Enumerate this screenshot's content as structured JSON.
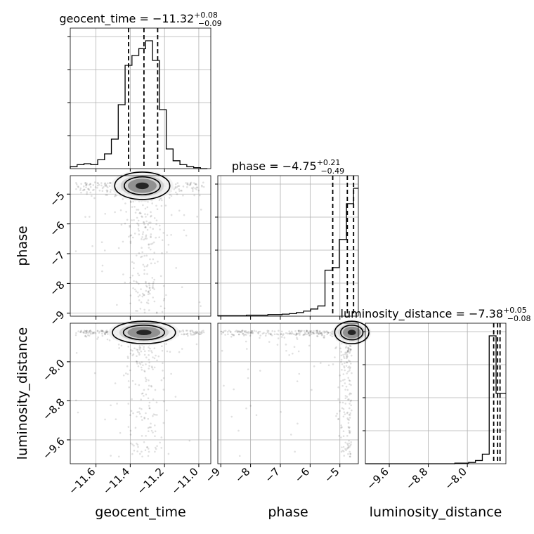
{
  "chart_data": {
    "type": "corner",
    "parameters": [
      "geocent_time",
      "phase",
      "luminosity_distance"
    ],
    "axis_labels": {
      "geocent_time": "geocent_time",
      "phase": "phase",
      "luminosity_distance": "luminosity_distance"
    },
    "titles": [
      {
        "param": "geocent_time",
        "name": "geocent_time",
        "median": "−11.32",
        "plus": "+0.08",
        "minus": "−0.09"
      },
      {
        "param": "phase",
        "name": "phase",
        "median": "−4.75",
        "plus": "+0.21",
        "minus": "−0.49"
      },
      {
        "param": "luminosity_distance",
        "name": "luminosity_distance",
        "median": "−7.38",
        "plus": "+0.05",
        "minus": "−0.08"
      }
    ],
    "ranges": {
      "geocent_time": [
        -11.75,
        -10.93
      ],
      "phase": [
        -9.1,
        -4.38
      ],
      "luminosity_distance": [
        -10.09,
        -7.21
      ]
    },
    "ticks": {
      "geocent_time": [
        -11.6,
        -11.4,
        -11.2,
        -11.0
      ],
      "phase": [
        -9,
        -8,
        -7,
        -6,
        -5
      ],
      "luminosity_distance": [
        -9.6,
        -8.8,
        -8.0
      ]
    },
    "tick_labels": {
      "geocent_time": [
        "−11.6",
        "−11.4",
        "−11.2",
        "−11.0"
      ],
      "phase": [
        "−9",
        "−8",
        "−7",
        "−6",
        "−5"
      ],
      "luminosity_distance": [
        "−9.6",
        "−8.8",
        "−8.0"
      ]
    },
    "quantiles": {
      "geocent_time": [
        -11.41,
        -11.32,
        -11.24
      ],
      "phase": [
        -5.24,
        -4.75,
        -4.54
      ],
      "luminosity_distance": [
        -7.46,
        -7.38,
        -7.33
      ]
    },
    "histograms": {
      "geocent_time": {
        "edges": [
          -11.75,
          -11.71,
          -11.67,
          -11.63,
          -11.59,
          -11.55,
          -11.51,
          -11.47,
          -11.43,
          -11.39,
          -11.35,
          -11.31,
          -11.27,
          -11.23,
          -11.19,
          -11.15,
          -11.11,
          -11.07,
          -11.03,
          -10.99,
          -10.95
        ],
        "counts": [
          2,
          4,
          5,
          4,
          9,
          15,
          30,
          65,
          105,
          115,
          122,
          130,
          110,
          60,
          20,
          8,
          4,
          2,
          1,
          0
        ]
      },
      "phase": {
        "edges": [
          -9.1,
          -8.86,
          -8.62,
          -8.38,
          -8.14,
          -7.9,
          -7.66,
          -7.42,
          -7.18,
          -6.94,
          -6.7,
          -6.46,
          -6.22,
          -5.98,
          -5.74,
          -5.5,
          -5.26,
          -5.02,
          -4.78,
          -4.54,
          -4.38
        ],
        "counts": [
          1,
          1,
          1,
          1,
          2,
          2,
          2,
          3,
          3,
          4,
          5,
          7,
          10,
          14,
          20,
          90,
          95,
          150,
          220,
          250
        ]
      },
      "luminosity_distance": {
        "edges": [
          -10.09,
          -9.949,
          -9.808,
          -9.667,
          -9.526,
          -9.385,
          -9.244,
          -9.103,
          -8.962,
          -8.821,
          -8.68,
          -8.539,
          -8.398,
          -8.257,
          -8.116,
          -7.975,
          -7.834,
          -7.693,
          -7.552,
          -7.411,
          -7.21
        ],
        "counts": [
          0,
          0,
          0,
          0,
          0,
          0,
          0,
          0,
          0,
          0,
          0,
          0,
          0,
          1,
          1,
          2,
          5,
          15,
          200,
          110
        ]
      }
    },
    "density_cores": [
      {
        "x": "geocent_time",
        "y": "phase",
        "x_center": -11.33,
        "y_center": -4.72,
        "x_width": 0.07,
        "y_width": 0.2
      },
      {
        "x": "geocent_time",
        "y": "luminosity_distance",
        "x_center": -11.32,
        "y_center": -7.4,
        "x_width": 0.08,
        "y_width": 0.1
      },
      {
        "x": "phase",
        "y": "luminosity_distance",
        "x_center": -4.6,
        "y_center": -7.4,
        "x_width": 0.25,
        "y_width": 0.1
      }
    ],
    "grid": true,
    "colors": {
      "lines": "#000000",
      "grid": "#b0b0b0",
      "scatter": "#000000"
    }
  }
}
